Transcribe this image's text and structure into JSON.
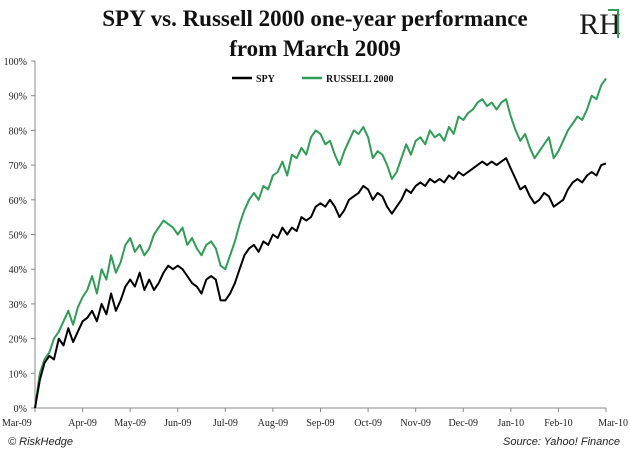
{
  "logo": {
    "text": "RH",
    "color": "#2e9e56"
  },
  "footer": {
    "credit": "© RiskHedge",
    "source": "Source: Yahoo! Finance"
  },
  "chart_data": {
    "type": "line",
    "title": "SPY vs. Russell 2000 one-year performance",
    "subtitle": "from March 2009",
    "xlabel": "",
    "ylabel": "",
    "ylim": [
      0,
      100
    ],
    "yticks": [
      "0%",
      "10%",
      "20%",
      "30%",
      "40%",
      "50%",
      "60%",
      "70%",
      "80%",
      "90%",
      "100%"
    ],
    "xticks": [
      "Mar-09",
      "Apr-09",
      "May-09",
      "Jun-09",
      "Jul-09",
      "Aug-09",
      "Sep-09",
      "Oct-09",
      "Nov-09",
      "Dec-09",
      "Jan-10",
      "Feb-10",
      "Mar-10"
    ],
    "x_domain": [
      0,
      12
    ],
    "grid": false,
    "legend_position": "top-center",
    "series": [
      {
        "name": "SPY",
        "color": "#000000",
        "x": [
          0,
          0.1,
          0.2,
          0.3,
          0.4,
          0.5,
          0.6,
          0.7,
          0.8,
          0.9,
          1.0,
          1.1,
          1.2,
          1.3,
          1.4,
          1.5,
          1.6,
          1.7,
          1.8,
          1.9,
          2.0,
          2.1,
          2.2,
          2.3,
          2.4,
          2.5,
          2.6,
          2.7,
          2.8,
          2.9,
          3.0,
          3.1,
          3.2,
          3.3,
          3.4,
          3.5,
          3.6,
          3.7,
          3.8,
          3.9,
          4.0,
          4.1,
          4.2,
          4.3,
          4.4,
          4.5,
          4.6,
          4.7,
          4.8,
          4.9,
          5.0,
          5.1,
          5.2,
          5.3,
          5.4,
          5.5,
          5.6,
          5.7,
          5.8,
          5.9,
          6.0,
          6.1,
          6.2,
          6.3,
          6.4,
          6.5,
          6.6,
          6.7,
          6.8,
          6.9,
          7.0,
          7.1,
          7.2,
          7.3,
          7.4,
          7.5,
          7.6,
          7.7,
          7.8,
          7.9,
          8.0,
          8.1,
          8.2,
          8.3,
          8.4,
          8.5,
          8.6,
          8.7,
          8.8,
          8.9,
          9.0,
          9.1,
          9.2,
          9.3,
          9.4,
          9.5,
          9.6,
          9.7,
          9.8,
          9.9,
          10.0,
          10.1,
          10.2,
          10.3,
          10.4,
          10.5,
          10.6,
          10.7,
          10.8,
          10.9,
          11.0,
          11.1,
          11.2,
          11.3,
          11.4,
          11.5,
          11.6,
          11.7,
          11.8,
          11.9,
          12.0
        ],
        "values": [
          0,
          8,
          13,
          15,
          14,
          20,
          18,
          23,
          19,
          22,
          25,
          26,
          28,
          25,
          30,
          27,
          33,
          28,
          31,
          35,
          37,
          35,
          39,
          34,
          37,
          34,
          36,
          39,
          41,
          40,
          41,
          40,
          38,
          36,
          35,
          33,
          37,
          38,
          37,
          31,
          31,
          33,
          36,
          40,
          44,
          46,
          47,
          45,
          48,
          47,
          50,
          49,
          52,
          50,
          52,
          51,
          55,
          54,
          55,
          58,
          59,
          58,
          60,
          58,
          55,
          57,
          60,
          61,
          62,
          64,
          63,
          60,
          62,
          61,
          58,
          56,
          58,
          60,
          63,
          62,
          64,
          65,
          64,
          66,
          65,
          66,
          65,
          67,
          66,
          68,
          67,
          68,
          69,
          70,
          71,
          70,
          71,
          70,
          71,
          72,
          69,
          66,
          63,
          64,
          61,
          59,
          60,
          62,
          61,
          58,
          59,
          60,
          63,
          65,
          66,
          65,
          67,
          68,
          67,
          70,
          70.5
        ]
      },
      {
        "name": "RUSSELL 2000",
        "color": "#2e9e56",
        "x": [
          0,
          0.1,
          0.2,
          0.3,
          0.4,
          0.5,
          0.6,
          0.7,
          0.8,
          0.9,
          1.0,
          1.1,
          1.2,
          1.3,
          1.4,
          1.5,
          1.6,
          1.7,
          1.8,
          1.9,
          2.0,
          2.1,
          2.2,
          2.3,
          2.4,
          2.5,
          2.6,
          2.7,
          2.8,
          2.9,
          3.0,
          3.1,
          3.2,
          3.3,
          3.4,
          3.5,
          3.6,
          3.7,
          3.8,
          3.9,
          4.0,
          4.1,
          4.2,
          4.3,
          4.4,
          4.5,
          4.6,
          4.7,
          4.8,
          4.9,
          5.0,
          5.1,
          5.2,
          5.3,
          5.4,
          5.5,
          5.6,
          5.7,
          5.8,
          5.9,
          6.0,
          6.1,
          6.2,
          6.3,
          6.4,
          6.5,
          6.6,
          6.7,
          6.8,
          6.9,
          7.0,
          7.1,
          7.2,
          7.3,
          7.4,
          7.5,
          7.6,
          7.7,
          7.8,
          7.9,
          8.0,
          8.1,
          8.2,
          8.3,
          8.4,
          8.5,
          8.6,
          8.7,
          8.8,
          8.9,
          9.0,
          9.1,
          9.2,
          9.3,
          9.4,
          9.5,
          9.6,
          9.7,
          9.8,
          9.9,
          10.0,
          10.1,
          10.2,
          10.3,
          10.4,
          10.5,
          10.6,
          10.7,
          10.8,
          10.9,
          11.0,
          11.1,
          11.2,
          11.3,
          11.4,
          11.5,
          11.6,
          11.7,
          11.8,
          11.9,
          12.0
        ],
        "values": [
          0,
          10,
          14,
          16,
          20,
          22,
          25,
          28,
          24,
          29,
          32,
          34,
          38,
          33,
          40,
          37,
          44,
          39,
          42,
          47,
          49,
          45,
          47,
          44,
          46,
          50,
          52,
          54,
          53,
          52,
          50,
          52,
          47,
          49,
          46,
          44,
          47,
          48,
          46,
          41,
          40,
          44,
          48,
          53,
          57,
          60,
          62,
          60,
          64,
          63,
          67,
          68,
          71,
          67,
          73,
          72,
          75,
          73,
          78,
          80,
          79,
          76,
          77,
          73,
          70,
          74,
          77,
          80,
          79,
          81,
          78,
          72,
          74,
          73,
          70,
          66,
          68,
          72,
          76,
          73,
          77,
          78,
          76,
          80,
          78,
          79,
          77,
          81,
          79,
          84,
          83,
          85,
          86,
          88,
          89,
          87,
          88,
          86,
          88,
          89,
          84,
          80,
          77,
          79,
          75,
          72,
          74,
          76,
          78,
          72,
          74,
          77,
          80,
          82,
          84,
          83,
          86,
          90,
          89,
          93,
          95
        ]
      }
    ]
  }
}
